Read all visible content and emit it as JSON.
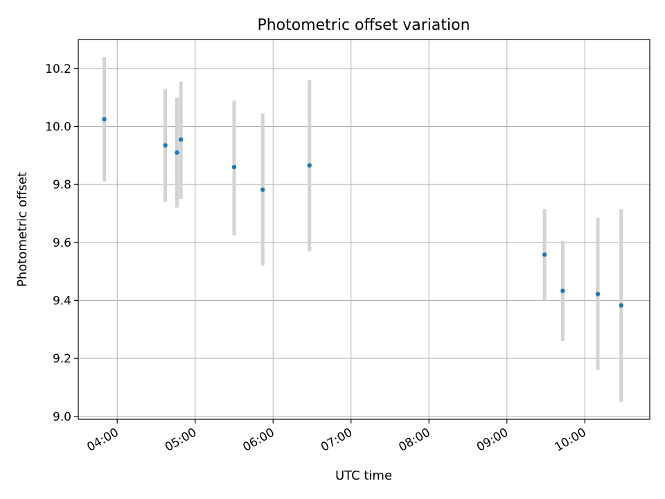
{
  "chart_data": {
    "type": "scatter",
    "title": "Photometric offset variation",
    "xlabel": "UTC time",
    "ylabel": "Photometric offset",
    "x_axis_type": "time",
    "xlim": [
      "03:30",
      "10:50"
    ],
    "ylim": [
      8.99,
      10.3
    ],
    "grid": true,
    "xticks": [
      "04:00",
      "05:00",
      "06:00",
      "07:00",
      "08:00",
      "09:00",
      "10:00"
    ],
    "yticks": [
      "9.0",
      "9.2",
      "9.4",
      "9.6",
      "9.8",
      "10.0",
      "10.2"
    ],
    "points": [
      {
        "x": "03:50",
        "y": 10.025,
        "yerr_low": 9.81,
        "yerr_high": 10.24
      },
      {
        "x": "04:37",
        "y": 9.935,
        "yerr_low": 9.74,
        "yerr_high": 10.13
      },
      {
        "x": "04:46",
        "y": 9.91,
        "yerr_low": 9.72,
        "yerr_high": 10.1
      },
      {
        "x": "04:49",
        "y": 9.955,
        "yerr_low": 9.75,
        "yerr_high": 10.155
      },
      {
        "x": "05:30",
        "y": 9.86,
        "yerr_low": 9.625,
        "yerr_high": 10.09
      },
      {
        "x": "05:52",
        "y": 9.782,
        "yerr_low": 9.52,
        "yerr_high": 10.045
      },
      {
        "x": "06:28",
        "y": 9.866,
        "yerr_low": 9.57,
        "yerr_high": 10.16
      },
      {
        "x": "09:29",
        "y": 9.558,
        "yerr_low": 9.4,
        "yerr_high": 9.715
      },
      {
        "x": "09:43",
        "y": 9.433,
        "yerr_low": 9.26,
        "yerr_high": 9.605
      },
      {
        "x": "10:10",
        "y": 9.422,
        "yerr_low": 9.16,
        "yerr_high": 9.685
      },
      {
        "x": "10:28",
        "y": 9.383,
        "yerr_low": 9.05,
        "yerr_high": 9.715
      }
    ],
    "marker_color": "#1f77b4",
    "errorbar_color": "#d3d3d3"
  }
}
